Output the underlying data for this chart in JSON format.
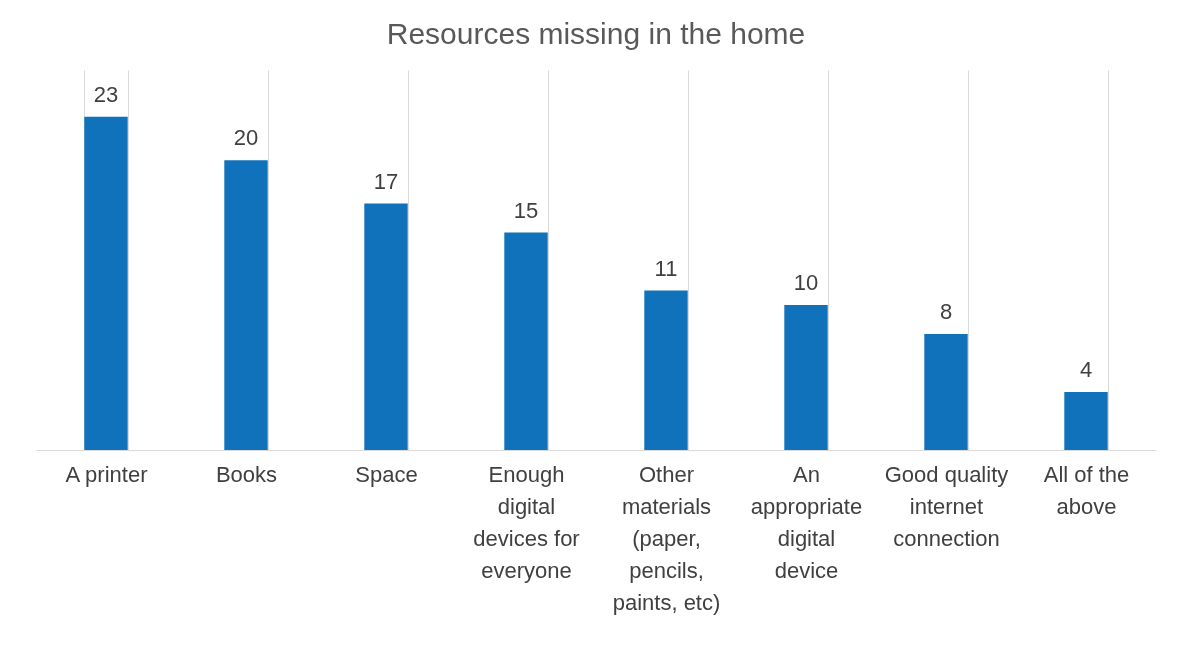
{
  "chart_data": {
    "type": "bar",
    "title": "Resources missing in the home",
    "categories": [
      "A printer",
      "Books",
      "Space",
      "Enough digital devices for everyone",
      "Other materials (paper, pencils, paints, etc)",
      "An appropriate digital device",
      "Good quality internet connection",
      "All of the above"
    ],
    "values": [
      23,
      20,
      17,
      15,
      11,
      10,
      8,
      4
    ],
    "color": "#0f72ba",
    "data_labels": true,
    "grid": "x",
    "tick_labels": "x"
  }
}
